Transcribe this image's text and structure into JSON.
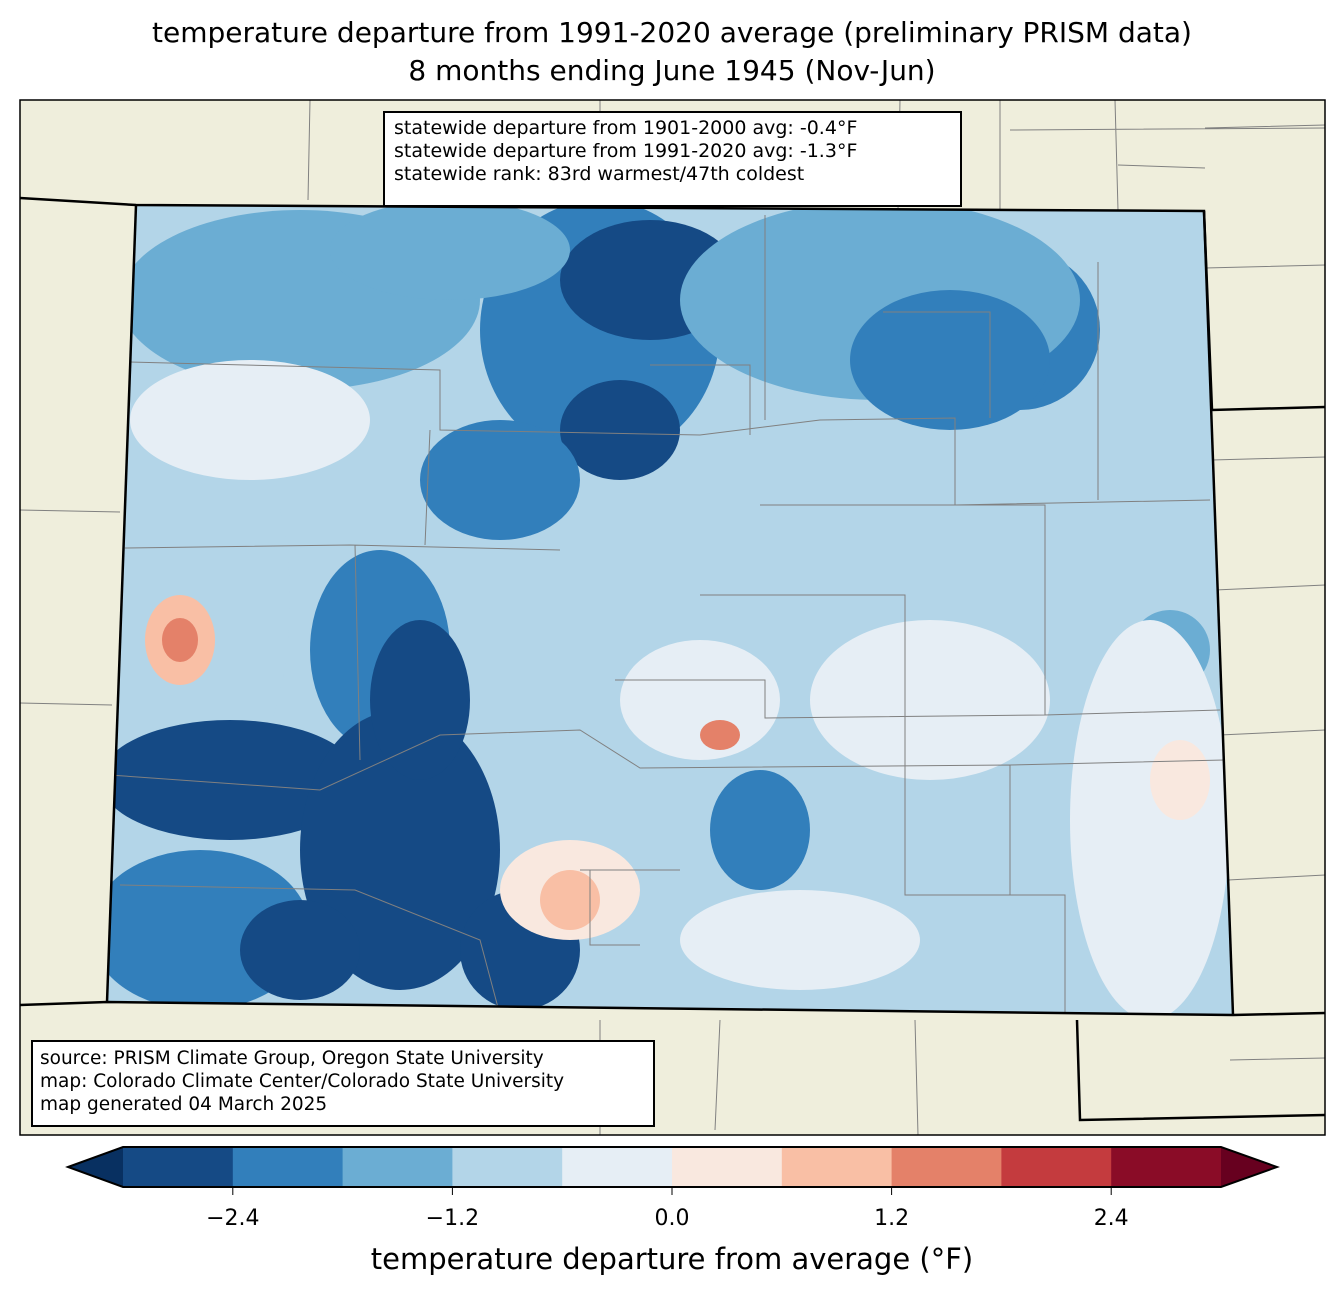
{
  "title": {
    "line1": "temperature departure from 1991-2020 average (preliminary PRISM data)",
    "line2": "8 months ending June 1945 (Nov-Jun)"
  },
  "stats": {
    "line1": "statewide departure from 1901-2000 avg: -0.4°F",
    "line2": "statewide departure from 1991-2020 avg: -1.3°F",
    "line3": "statewide rank: 83rd warmest/47th coldest"
  },
  "source": {
    "line1": "source: PRISM Climate Group, Oregon State University",
    "line2": "map: Colorado Climate Center/Colorado State University",
    "line3": "map generated 04 March 2025"
  },
  "colorbar": {
    "label": "temperature departure from average (°F)",
    "levels": [
      -3.0,
      -2.4,
      -1.8,
      -1.2,
      -0.6,
      0.0,
      0.6,
      1.2,
      1.8,
      2.4,
      3.0
    ],
    "colors": [
      "#154a85",
      "#327fbb",
      "#6badd3",
      "#b3d5e8",
      "#e6eef5",
      "#f9e8df",
      "#f9bfa5",
      "#e48169",
      "#c43b3e",
      "#8a0c27"
    ],
    "under_color": "#083061",
    "over_color": "#67001f",
    "ticks": [
      {
        "value": -2.4,
        "label": "−2.4"
      },
      {
        "value": -1.2,
        "label": "−1.2"
      },
      {
        "value": 0.0,
        "label": "0.0"
      },
      {
        "value": 1.2,
        "label": "1.2"
      },
      {
        "value": 2.4,
        "label": "2.4"
      }
    ]
  },
  "map": {
    "land_color": "#efeedc",
    "border_color": "#000000",
    "county_color": "#808080"
  }
}
